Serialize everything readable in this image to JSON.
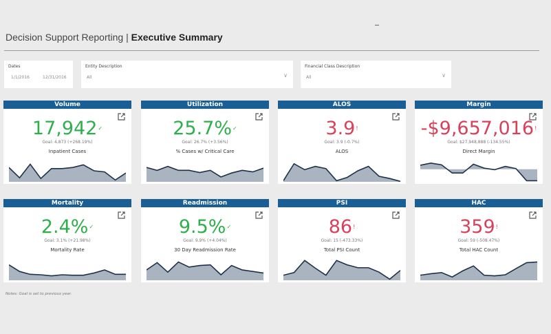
{
  "header": {
    "title_prefix": "Decision Support Reporting | ",
    "title_bold": "Executive Summary"
  },
  "filters": {
    "dates": {
      "label": "Dates",
      "start": "1/1/2016",
      "end": "12/31/2016"
    },
    "entity": {
      "label": "Entity Description",
      "value": "All"
    },
    "financial_class": {
      "label": "Financial Class Description",
      "value": "All"
    }
  },
  "colors": {
    "header_blue": "#1a5e96",
    "good": "#2db04b",
    "bad": "#d9415b",
    "spark_fill": "#a9b4c0",
    "spark_line": "#1e3048"
  },
  "cards": [
    {
      "title": "Volume",
      "value": "17,942",
      "status": "good",
      "goal": "Goal: 4,873 (+268.19%)",
      "metric": "Inpatient Cases",
      "spark": [
        65,
        18,
        80,
        15,
        60,
        60,
        65,
        77,
        50,
        45,
        8,
        40
      ]
    },
    {
      "title": "Utilization",
      "value": "25.7%",
      "status": "good",
      "goal": "Goal: 26.7% (+3.56%)",
      "metric": "% Cases w/ Critical Care",
      "spark": [
        65,
        52,
        70,
        52,
        52,
        42,
        52,
        22,
        40,
        52,
        45,
        62
      ]
    },
    {
      "title": "ALOS",
      "value": "3.9",
      "status": "bad",
      "goal": "Goal: 3.9 (-0.7%)",
      "metric": "ALOS",
      "spark": [
        5,
        82,
        55,
        70,
        60,
        5,
        20,
        50,
        70,
        25,
        15,
        2
      ]
    },
    {
      "title": "Margin",
      "value": "-$9,657,016",
      "status": "bad",
      "goal": "Goal: $27,948,888 (-134.55%)",
      "metric": "Direct Margin",
      "spark": [
        75,
        85,
        77,
        40,
        40,
        80,
        62,
        55,
        70,
        60,
        5,
        5
      ],
      "spark_ref": 57
    },
    {
      "title": "Mortality",
      "value": "2.4%",
      "status": "good",
      "goal": "Goal: 3.1% (+21.98%)",
      "metric": "Mortality Rate",
      "spark": [
        70,
        40,
        27,
        25,
        20,
        25,
        23,
        23,
        33,
        47,
        27,
        27
      ]
    },
    {
      "title": "Readmission",
      "value": "9.5%",
      "status": "good",
      "goal": "Goal: 9.9% (+4.04%)",
      "metric": "30 Day Readmission Rate",
      "spark": [
        47,
        80,
        37,
        83,
        60,
        67,
        70,
        25,
        67,
        47,
        40,
        33
      ]
    },
    {
      "title": "PSI",
      "value": "86",
      "status": "bad",
      "goal": "Goal: 15 (-473.33%)",
      "metric": "Total PSI Count",
      "spark": [
        23,
        35,
        90,
        55,
        23,
        90,
        70,
        57,
        57,
        37,
        5,
        45
      ]
    },
    {
      "title": "HAC",
      "value": "359",
      "status": "bad",
      "goal": "Goal: 59 (-508.47%)",
      "metric": "Total HAC Count",
      "spark": [
        23,
        30,
        35,
        15,
        43,
        65,
        23,
        20,
        25,
        53,
        80,
        83
      ]
    }
  ],
  "footer": {
    "note": "Notes: Goal is set to previous year."
  }
}
